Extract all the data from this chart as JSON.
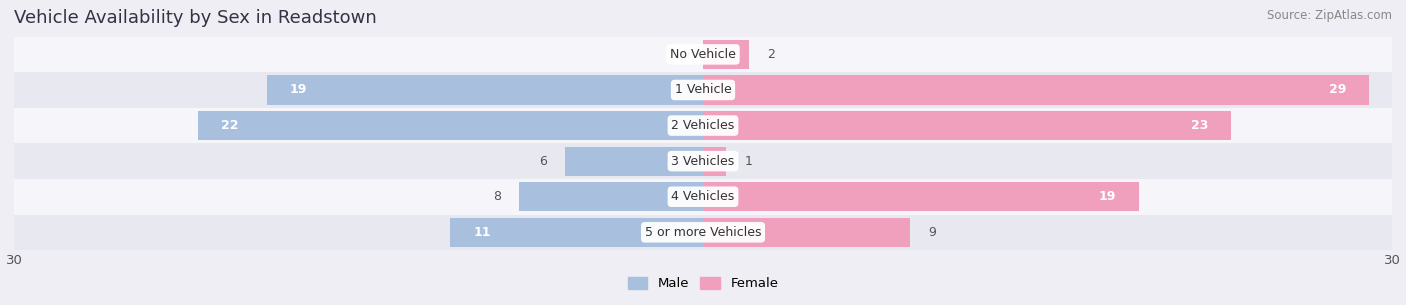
{
  "title": "Vehicle Availability by Sex in Readstown",
  "source": "Source: ZipAtlas.com",
  "categories": [
    "No Vehicle",
    "1 Vehicle",
    "2 Vehicles",
    "3 Vehicles",
    "4 Vehicles",
    "5 or more Vehicles"
  ],
  "male_values": [
    0,
    19,
    22,
    6,
    8,
    11
  ],
  "female_values": [
    2,
    29,
    23,
    1,
    19,
    9
  ],
  "male_color": "#a8c0de",
  "female_color": "#f0a0bc",
  "bar_height": 0.82,
  "xlim": [
    -30,
    30
  ],
  "background_color": "#eeeef4",
  "row_colors": [
    "#f5f5fa",
    "#e8e8f0"
  ],
  "title_fontsize": 13,
  "label_fontsize": 9,
  "value_fontsize": 9,
  "tick_fontsize": 9.5,
  "source_fontsize": 8.5
}
